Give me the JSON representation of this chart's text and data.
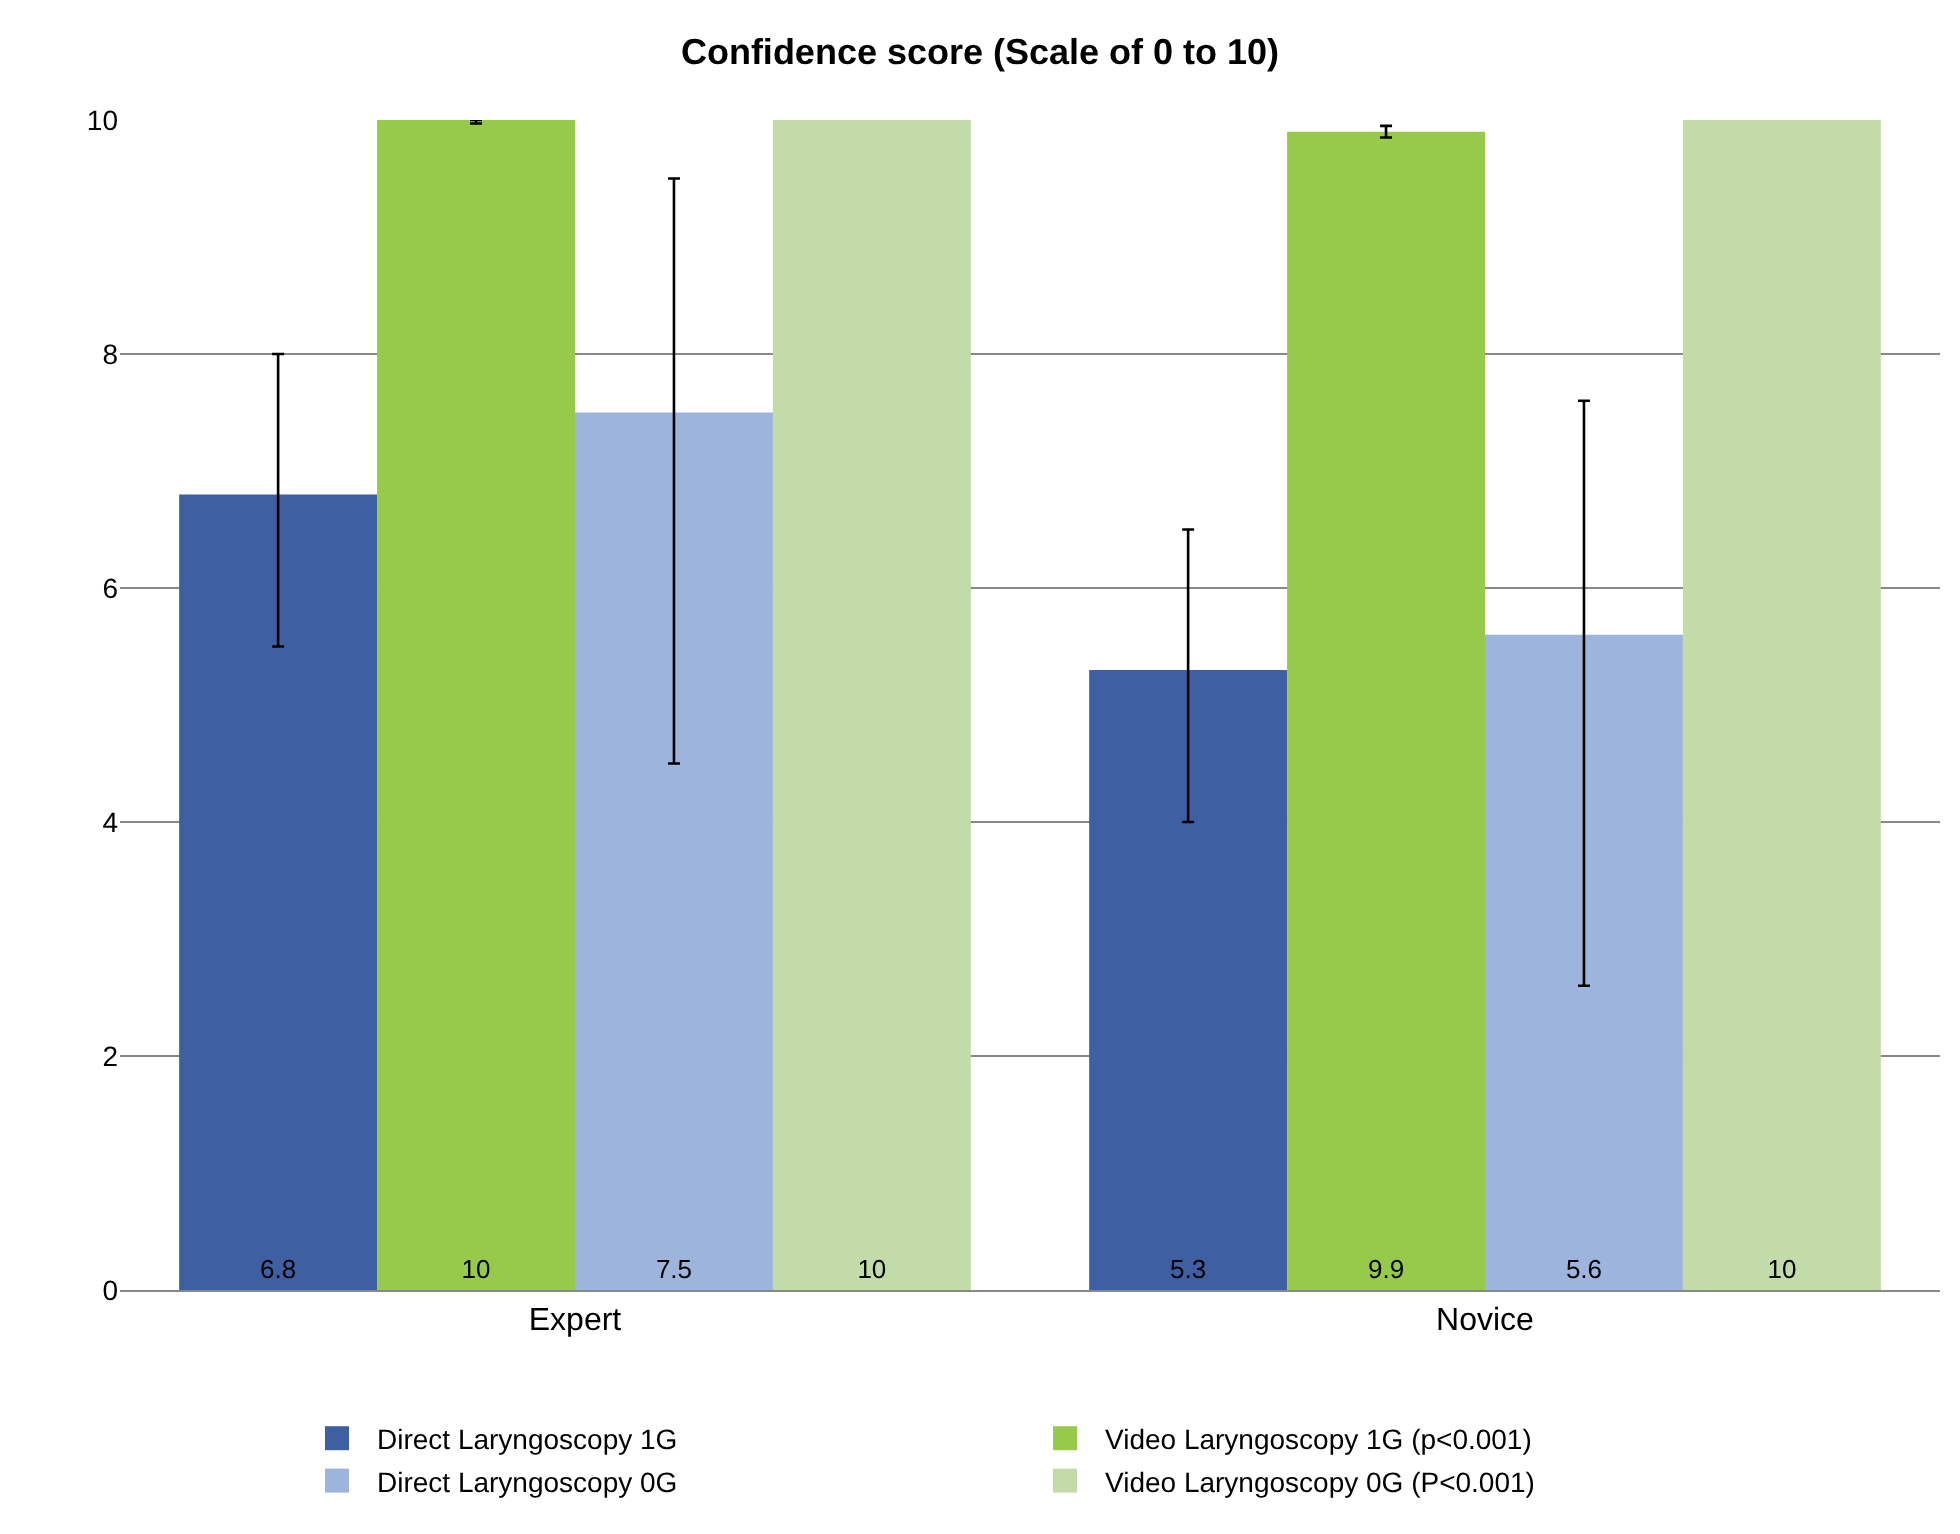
{
  "chart_data": {
    "type": "bar",
    "title": "Confidence score (Scale of 0 to 10)",
    "categories": [
      "Expert",
      "Novice"
    ],
    "series": [
      {
        "name": "Direct Laryngoscopy 1G",
        "color": "#3f5fa3",
        "values": [
          6.8,
          5.3
        ],
        "errors": [
          [
            5.5,
            8.0
          ],
          [
            4.0,
            6.5
          ]
        ]
      },
      {
        "name": "Video Laryngoscopy 1G (p<0.001)",
        "color": "#97c94a",
        "values": [
          10,
          9.9
        ],
        "errors": [
          [
            9.97,
            10
          ],
          [
            9.85,
            9.95
          ]
        ]
      },
      {
        "name": "Direct Laryngoscopy 0G",
        "color": "#9db4dd",
        "values": [
          7.5,
          5.6
        ],
        "errors": [
          [
            4.5,
            9.5
          ],
          [
            2.6,
            7.6
          ]
        ]
      },
      {
        "name": "Video Laryngoscopy 0G (P<0.001)",
        "color": "#c3dba8",
        "values": [
          10,
          10
        ]
      }
    ],
    "ylim": [
      0,
      10
    ],
    "yticks": [
      0,
      2,
      4,
      6,
      8,
      10
    ],
    "grid": "y",
    "legend": "bottom",
    "data_labels": true
  }
}
